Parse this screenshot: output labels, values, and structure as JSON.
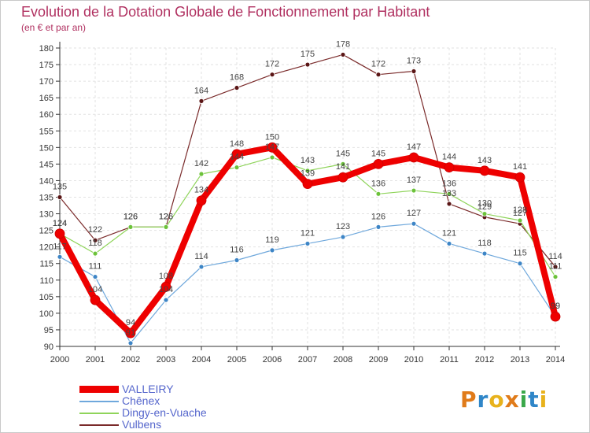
{
  "title": "Evolution de la Dotation Globale de Fonctionnement par Habitant",
  "subtitle": "(en € et par an)",
  "logo": {
    "letters": [
      "P",
      "r",
      "o",
      "x",
      "i",
      "t",
      "i"
    ],
    "colors": [
      "#e07b1a",
      "#2f86c8",
      "#e8b21c",
      "#e07b1a",
      "#3aa84a",
      "#2f86c8",
      "#e8b21c"
    ]
  },
  "chart_data": {
    "type": "line",
    "x": [
      "2000",
      "2001",
      "2002",
      "2003",
      "2004",
      "2005",
      "2006",
      "2007",
      "2008",
      "2009",
      "2010",
      "2011",
      "2012",
      "2013",
      "2014"
    ],
    "ylim": [
      90,
      180
    ],
    "yticks": [
      90,
      95,
      100,
      105,
      110,
      115,
      120,
      125,
      130,
      135,
      140,
      145,
      150,
      155,
      160,
      165,
      170,
      175,
      180
    ],
    "grid": true,
    "legend_position": "bottom-left",
    "series": [
      {
        "name": "Vulbens",
        "color": "#7a2a2a",
        "width": 1.2,
        "marker_color": "#5a1515",
        "values": [
          135,
          122,
          126,
          126,
          164,
          168,
          172,
          175,
          178,
          172,
          173,
          133,
          129,
          127,
          114
        ]
      },
      {
        "name": "Dingy-en-Vuache",
        "color": "#8fd45a",
        "width": 1.2,
        "marker_color": "#6cc23a",
        "values": [
          124,
          118,
          126,
          126,
          142,
          144,
          147,
          143,
          145,
          136,
          137,
          136,
          130,
          128,
          111
        ]
      },
      {
        "name": "Chênex",
        "color": "#6fa8dc",
        "width": 1.2,
        "marker_color": "#3d85c6",
        "values": [
          117,
          111,
          91,
          104,
          114,
          116,
          119,
          121,
          123,
          126,
          127,
          121,
          118,
          115,
          99
        ]
      },
      {
        "name": "VALLEIRY",
        "color": "#ee0000",
        "width": 8,
        "marker_color": "#ee0000",
        "values": [
          124,
          104,
          94,
          108,
          134,
          148,
          150,
          139,
          141,
          145,
          147,
          144,
          143,
          141,
          99
        ]
      }
    ],
    "legend": [
      "VALLEIRY",
      "Chênex",
      "Dingy-en-Vuache",
      "Vulbens"
    ]
  }
}
